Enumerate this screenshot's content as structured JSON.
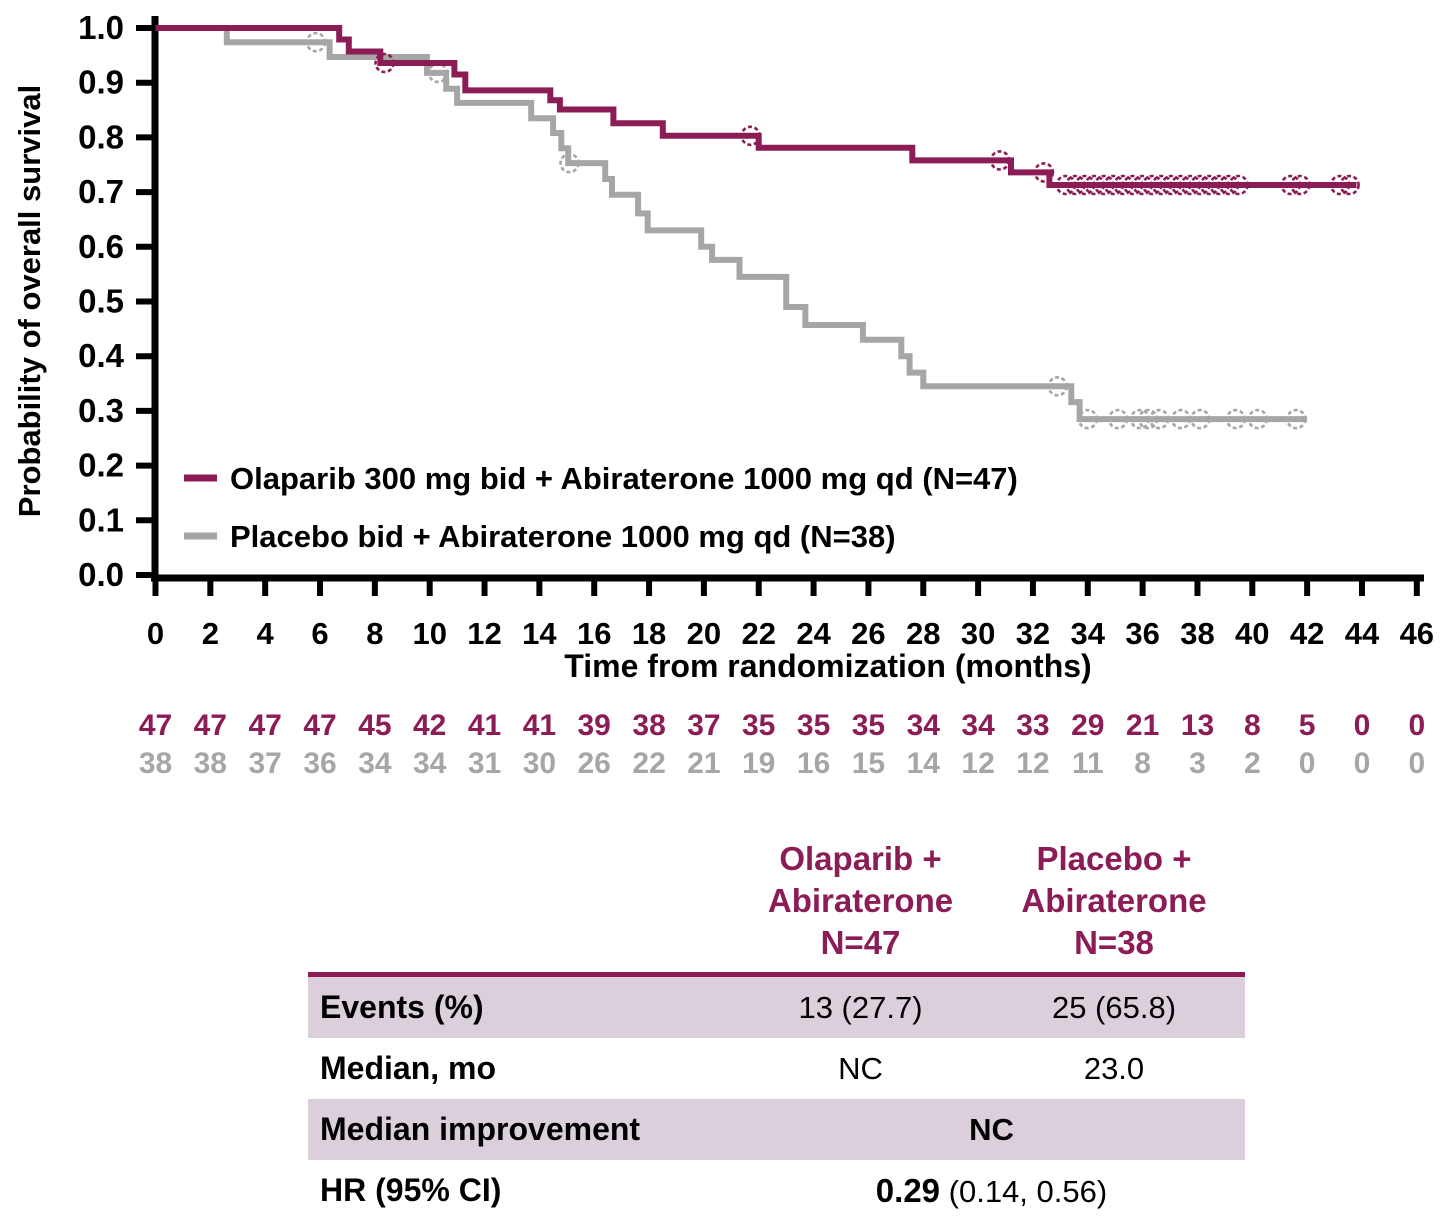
{
  "chart_data": {
    "type": "line",
    "subtype": "kaplan-meier-step",
    "title": "",
    "xlabel": "Time from randomization (months)",
    "ylabel": "Probability of overall survival",
    "xlim": [
      0,
      46
    ],
    "ylim": [
      0.0,
      1.0
    ],
    "grid": false,
    "legend_position": "inside-lower-left",
    "axis_color": "#000000",
    "xticks": [
      0,
      2,
      4,
      6,
      8,
      10,
      12,
      14,
      16,
      18,
      20,
      22,
      24,
      26,
      28,
      30,
      32,
      34,
      36,
      38,
      40,
      42,
      44,
      46
    ],
    "ytick_labels": [
      "1.0",
      "0.9",
      "0.8",
      "0.7",
      "0.6",
      "0.5",
      "0.4",
      "0.3",
      "0.2",
      "0.1",
      "0.0"
    ],
    "series": [
      {
        "key": "olaparib-arm",
        "name": "Olaparib 300 mg bid + Abiraterone 1000 mg qd (N=47)",
        "color": "#8B1C56",
        "steps": [
          [
            0,
            1.0
          ],
          [
            6.7,
            0.979
          ],
          [
            7.05,
            0.957
          ],
          [
            8.2,
            0.936
          ],
          [
            10.9,
            0.915
          ],
          [
            11.3,
            0.886
          ],
          [
            14.4,
            0.868
          ],
          [
            14.75,
            0.851
          ],
          [
            16.7,
            0.826
          ],
          [
            18.5,
            0.803
          ],
          [
            22.0,
            0.781
          ],
          [
            27.6,
            0.758
          ],
          [
            31.2,
            0.736
          ],
          [
            32.6,
            0.713
          ]
        ],
        "end_x": 43.8,
        "censors": [
          [
            8.35,
            0.936
          ],
          [
            21.7,
            0.803
          ],
          [
            30.8,
            0.758
          ],
          [
            32.4,
            0.736
          ],
          [
            33.2,
            0.713
          ],
          [
            33.55,
            0.713
          ],
          [
            33.9,
            0.713
          ],
          [
            34.25,
            0.713
          ],
          [
            34.6,
            0.713
          ],
          [
            34.95,
            0.713
          ],
          [
            35.3,
            0.713
          ],
          [
            35.65,
            0.713
          ],
          [
            36.0,
            0.713
          ],
          [
            36.35,
            0.713
          ],
          [
            36.7,
            0.713
          ],
          [
            37.05,
            0.713
          ],
          [
            37.4,
            0.713
          ],
          [
            37.75,
            0.713
          ],
          [
            38.1,
            0.713
          ],
          [
            38.45,
            0.713
          ],
          [
            38.8,
            0.713
          ],
          [
            39.15,
            0.713
          ],
          [
            39.5,
            0.713
          ],
          [
            41.4,
            0.713
          ],
          [
            41.75,
            0.713
          ],
          [
            43.2,
            0.713
          ],
          [
            43.55,
            0.713
          ]
        ],
        "at_risk": [
          47,
          47,
          47,
          47,
          45,
          42,
          41,
          41,
          39,
          38,
          37,
          35,
          35,
          35,
          34,
          34,
          33,
          29,
          21,
          13,
          8,
          5,
          0,
          0
        ]
      },
      {
        "key": "placebo-arm",
        "name": "Placebo bid + Abiraterone 1000 mg qd (N=38)",
        "color": "#A6A6A6",
        "steps": [
          [
            0,
            1.0
          ],
          [
            2.6,
            0.974
          ],
          [
            6.35,
            0.947
          ],
          [
            9.9,
            0.918
          ],
          [
            10.6,
            0.889
          ],
          [
            11.0,
            0.863
          ],
          [
            13.7,
            0.835
          ],
          [
            14.5,
            0.808
          ],
          [
            14.8,
            0.78
          ],
          [
            15.05,
            0.753
          ],
          [
            16.4,
            0.724
          ],
          [
            16.65,
            0.695
          ],
          [
            17.6,
            0.661
          ],
          [
            17.95,
            0.63
          ],
          [
            19.9,
            0.6
          ],
          [
            20.3,
            0.576
          ],
          [
            21.3,
            0.545
          ],
          [
            23.0,
            0.49
          ],
          [
            23.7,
            0.457
          ],
          [
            25.8,
            0.43
          ],
          [
            27.2,
            0.4
          ],
          [
            27.5,
            0.37
          ],
          [
            28.0,
            0.345
          ],
          [
            33.4,
            0.316
          ],
          [
            33.7,
            0.285
          ]
        ],
        "end_x": 42.0,
        "censors": [
          [
            5.85,
            0.974
          ],
          [
            10.3,
            0.918
          ],
          [
            15.1,
            0.753
          ],
          [
            32.9,
            0.345
          ],
          [
            34.0,
            0.285
          ],
          [
            35.1,
            0.285
          ],
          [
            35.9,
            0.285
          ],
          [
            36.2,
            0.285
          ],
          [
            36.6,
            0.285
          ],
          [
            37.4,
            0.285
          ],
          [
            38.1,
            0.285
          ],
          [
            39.4,
            0.285
          ],
          [
            40.2,
            0.285
          ],
          [
            41.6,
            0.285
          ]
        ],
        "at_risk": [
          38,
          38,
          37,
          36,
          34,
          34,
          31,
          30,
          26,
          22,
          21,
          19,
          16,
          15,
          14,
          12,
          12,
          11,
          8,
          3,
          2,
          0,
          0,
          0
        ]
      }
    ]
  },
  "summary_table": {
    "accent_color": "#8B1C56",
    "band_color": "#DCCFDC",
    "col_headers": [
      "Olaparib +\nAbiraterone\nN=47",
      "Placebo +\nAbiraterone\nN=38"
    ],
    "rows": [
      {
        "label": "Events (%)",
        "col1": "13 (27.7)",
        "col2": "25 (65.8)"
      },
      {
        "label": "Median, mo",
        "col1": "NC",
        "col2": "23.0"
      },
      {
        "label": "Median improvement",
        "value_span": "NC"
      },
      {
        "label": "HR (95% CI)",
        "value_bold": "0.29",
        "value_rest": " (0.14, 0.56)"
      }
    ]
  }
}
